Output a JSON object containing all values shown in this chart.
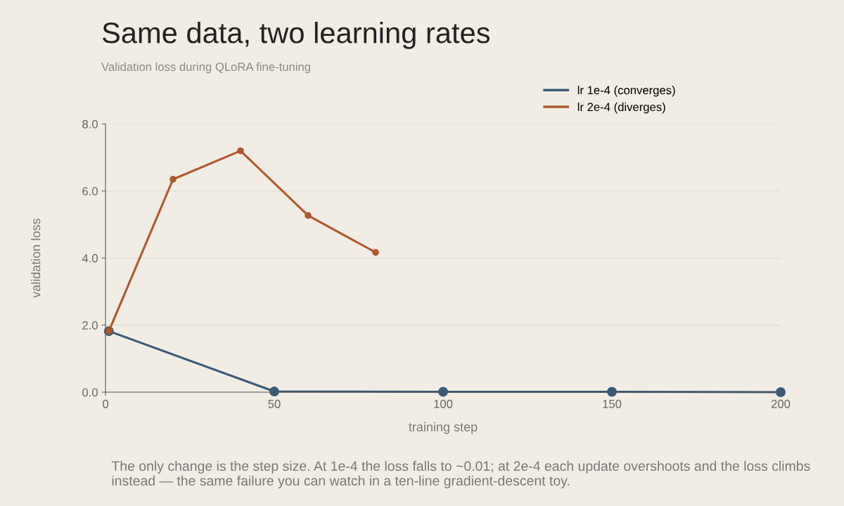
{
  "chart_data": {
    "type": "line",
    "title": "Same data, two learning rates",
    "subtitle": "Validation loss during QLoRA fine-tuning",
    "xlabel": "training step",
    "ylabel": "validation loss",
    "series": [
      {
        "name": "lr 1e-4 (converges)",
        "color": "#3a5a7a",
        "x": [
          1,
          50,
          100,
          150,
          200
        ],
        "values": [
          1.82,
          0.02,
          0.01,
          0.01,
          0.0
        ]
      },
      {
        "name": "lr 2e-4 (diverges)",
        "color": "#b0582e",
        "x": [
          1,
          20,
          40,
          60,
          80
        ],
        "values": [
          1.82,
          6.35,
          7.2,
          5.27,
          4.17
        ]
      }
    ],
    "xlim": [
      0,
      200
    ],
    "xticks": [
      0,
      50,
      100,
      150,
      200
    ],
    "ylim": [
      0,
      8
    ],
    "yticks": [
      {
        "value": 0,
        "label": "0.0"
      },
      {
        "value": 2,
        "label": "2.0"
      },
      {
        "value": 4,
        "label": "4.0"
      },
      {
        "value": 6,
        "label": "6.0"
      },
      {
        "value": 8,
        "label": "8.0"
      }
    ],
    "grid": "y",
    "legend": "top right",
    "marker": "circle",
    "line_style": "solid",
    "annotations": [
      "The only change is the step size. At 1e-4 the loss falls to ~0.01; at 2e-4 each update overshoots and the loss climbs instead — the same failure you can watch in a ten-line gradient-descent toy."
    ]
  }
}
